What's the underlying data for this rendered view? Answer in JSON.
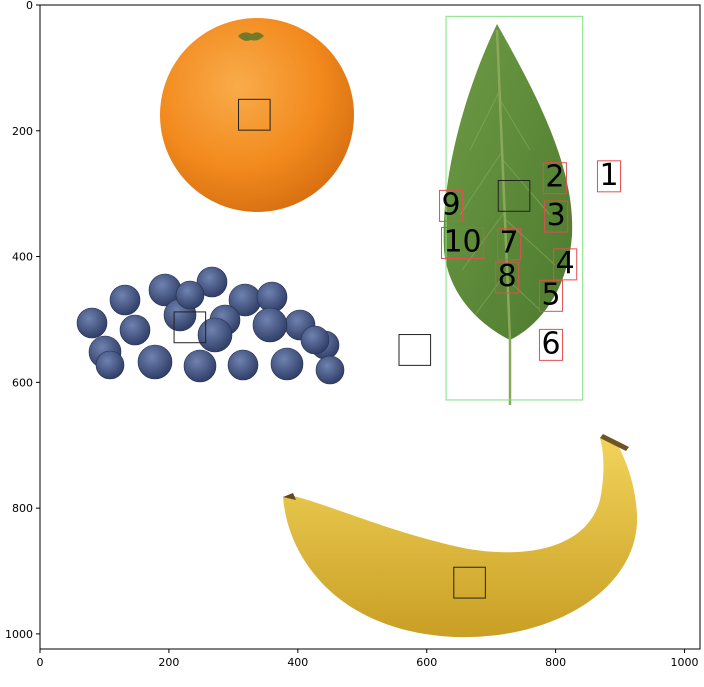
{
  "axes": {
    "xlim": [
      0,
      1024
    ],
    "ylim": [
      1024,
      0
    ],
    "x_ticks": [
      0,
      200,
      400,
      600,
      800,
      1000
    ],
    "y_ticks": [
      0,
      200,
      400,
      600,
      800,
      1000
    ]
  },
  "objects": [
    {
      "name": "orange",
      "color": "#f28a1e"
    },
    {
      "name": "leaf",
      "color": "#5f8b3a"
    },
    {
      "name": "blueberries",
      "color": "#3c4e7c"
    },
    {
      "name": "banana",
      "color": "#e2bf3c"
    }
  ],
  "leaf_box": {
    "x0": 630,
    "y0": 18,
    "x1": 842,
    "y1": 628,
    "color": "#7fe07f"
  },
  "marker_boxes": [
    {
      "x0": 308,
      "y0": 150,
      "x1": 357,
      "y1": 199
    },
    {
      "x0": 711,
      "y0": 279,
      "x1": 760,
      "y1": 328
    },
    {
      "x0": 208,
      "y0": 488,
      "x1": 257,
      "y1": 537
    },
    {
      "x0": 557,
      "y0": 524,
      "x1": 606,
      "y1": 573
    },
    {
      "x0": 642,
      "y0": 894,
      "x1": 691,
      "y1": 943
    }
  ],
  "labels": [
    {
      "text": "1",
      "x": 868,
      "y": 243
    },
    {
      "text": "2",
      "x": 784,
      "y": 246
    },
    {
      "text": "3",
      "x": 786,
      "y": 307
    },
    {
      "text": "4",
      "x": 800,
      "y": 383
    },
    {
      "text": "5",
      "x": 778,
      "y": 433
    },
    {
      "text": "6",
      "x": 778,
      "y": 511
    },
    {
      "text": "7",
      "x": 713,
      "y": 351
    },
    {
      "text": "8",
      "x": 710,
      "y": 404
    },
    {
      "text": "9",
      "x": 623,
      "y": 290
    },
    {
      "text": "10",
      "x": 626,
      "y": 349
    }
  ]
}
